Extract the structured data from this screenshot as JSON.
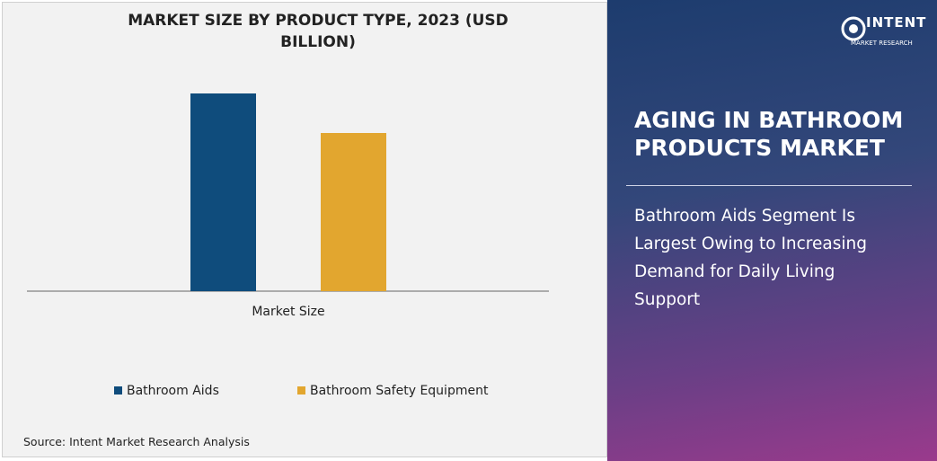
{
  "chart_data": {
    "type": "bar",
    "title": "MARKET SIZE BY PRODUCT TYPE, 2023 (USD BILLION)",
    "categories": [
      "Market Size"
    ],
    "series": [
      {
        "name": "Bathroom Aids",
        "color": "#0f4c7c",
        "values": [
          2.5
        ]
      },
      {
        "name": "Bathroom Safety Equipment",
        "color": "#e2a62f",
        "values": [
          2.0
        ]
      }
    ],
    "source": "Source: Intent Market Research Analysis"
  },
  "panel": {
    "headline": "AGING IN BATHROOM PRODUCTS MARKET",
    "description": "Bathroom Aids Segment Is Largest Owing to Increasing Demand for Daily Living Support",
    "logo": {
      "name": "INTENT",
      "tagline": "MARKET RESEARCH"
    }
  }
}
